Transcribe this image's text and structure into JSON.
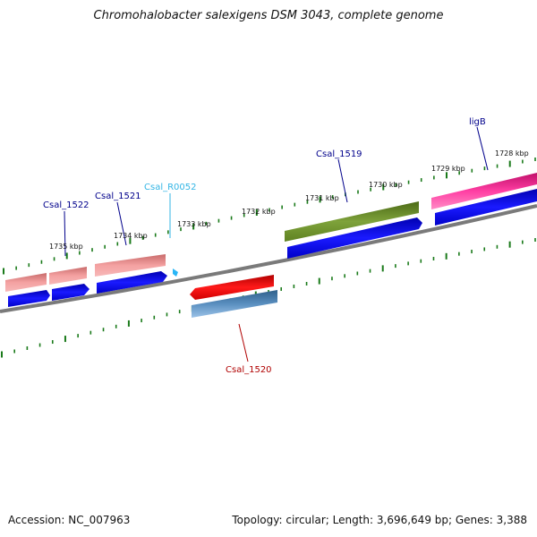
{
  "title": "Chromohalobacter salexigens DSM 3043, complete genome",
  "footer": {
    "accession": "Accession: NC_007963",
    "summary": "Topology: circular; Length: 3,696,649 bp; Genes: 3,388"
  },
  "scale_labels": [
    "1735 kbp",
    "1734 kbp",
    "1733 kbp",
    "1732 kbp",
    "1731 kbp",
    "1730 kbp",
    "1729 kbp",
    "1728 kbp"
  ],
  "gene_labels": [
    {
      "text": "Csal_1522",
      "color": "#00008b"
    },
    {
      "text": "Csal_1521",
      "color": "#00008b"
    },
    {
      "text": "Csal_R0052",
      "color": "#33b5e5"
    },
    {
      "text": "Csal_1519",
      "color": "#00008b"
    },
    {
      "text": "ligB",
      "color": "#00008b"
    },
    {
      "text": "Csal_1520",
      "color": "#b00000"
    }
  ],
  "colors": {
    "tick": "#1a7a1a",
    "backbone": "#808080",
    "cds": "#0000ee",
    "gene_pink": "#f08080",
    "gene_olive": "#6b8e23",
    "gene_magenta": "#ff1493",
    "gene_red": "#ff0000",
    "gene_steel": "#4682b4",
    "trna": "#29b6f6"
  }
}
